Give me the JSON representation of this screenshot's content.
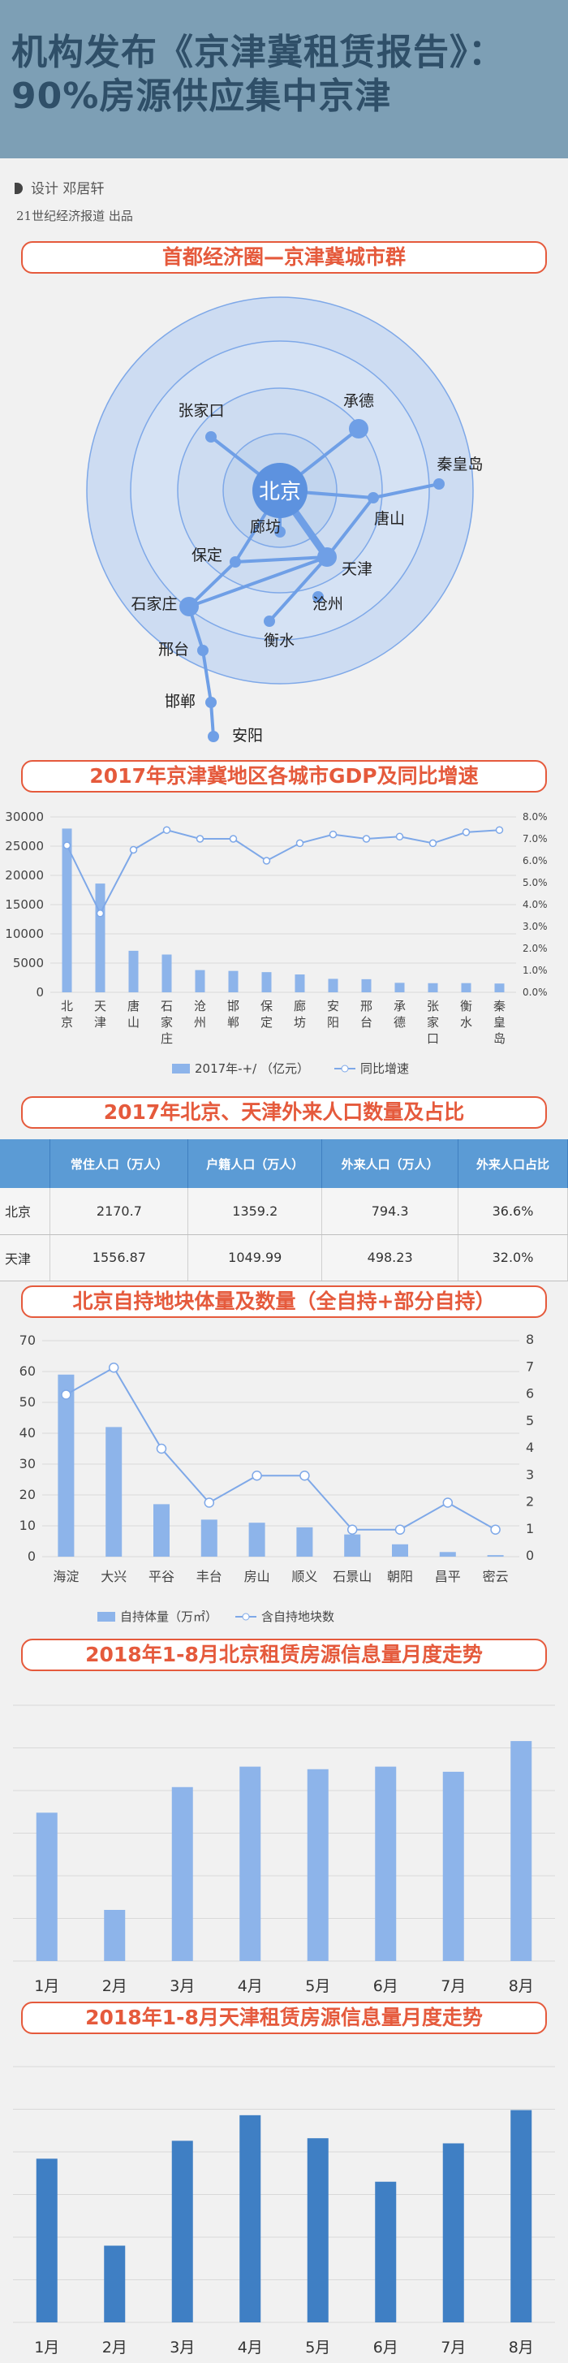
{
  "header": {
    "title_line1": "机构发布《京津冀租赁报告》：",
    "title_line2": "90%房源供应集中京津"
  },
  "credit": {
    "designer": "设计  邓居轩",
    "publisher": "21世纪经济报道  出品"
  },
  "colors": {
    "accent": "#e55a3c",
    "bar_light": "#8db4ea",
    "bar_dark": "#3f7fc4",
    "line": "#7ea8e8",
    "header_bg": "#7d9fb5",
    "title_text": "#2f4f68"
  },
  "sections": {
    "s1": "首都经济圈—京津冀城市群",
    "s2": "2017年京津冀地区各城市GDP及同比增速",
    "s3": "2017年北京、天津外来人口数量及占比",
    "s4": "北京自持地块体量及数量（全自持+部分自持）",
    "s5": "2018年1-8月北京租赁房源信息量月度走势",
    "s6": "2018年1-8月天津租赁房源信息量月度走势"
  },
  "city_map": {
    "center": "北京",
    "cities": [
      "张家口",
      "承德",
      "秦皇岛",
      "唐山",
      "廊坊",
      "保定",
      "天津",
      "沧州",
      "衡水",
      "石家庄",
      "邢台",
      "邯郸",
      "安阳"
    ]
  },
  "chart_data": [
    {
      "type": "bar",
      "title": "2017年京津冀地区各城市GDP及同比增速",
      "categories": [
        "北京",
        "天津",
        "唐山",
        "石家庄",
        "沧州",
        "邯郸",
        "保定",
        "廊坊",
        "安阳",
        "邢台",
        "承德",
        "张家口",
        "衡水",
        "秦皇岛"
      ],
      "series": [
        {
          "name": "2017年-+/ （亿元）",
          "type": "bar",
          "axis": "left",
          "values": [
            28000,
            18600,
            7100,
            6460,
            3800,
            3660,
            3450,
            3050,
            2300,
            2240,
            1620,
            1560,
            1570,
            1500
          ]
        },
        {
          "name": "同比增速",
          "type": "line",
          "axis": "right",
          "values": [
            6.7,
            3.6,
            6.5,
            7.4,
            7.0,
            7.0,
            6.0,
            6.8,
            7.2,
            7.0,
            7.1,
            6.8,
            7.3,
            7.4
          ]
        }
      ],
      "ylim": [
        0,
        30000
      ],
      "y_ticks": [
        "30000",
        "25000",
        "20000",
        "15000",
        "10000",
        "5000",
        "0"
      ],
      "y2lim": [
        0,
        8
      ],
      "y2_ticks": [
        "8.0%",
        "7.0%",
        "6.0%",
        "5.0%",
        "4.0%",
        "3.0%",
        "2.0%",
        "1.0%",
        "0.0%"
      ],
      "legend": "bottom"
    },
    {
      "type": "table",
      "title": "2017年北京、天津外来人口数量及占比",
      "columns": [
        "",
        "常住人口（万人）",
        "户籍人口（万人）",
        "外来人口（万人）",
        "外来人口占比"
      ],
      "rows": [
        [
          "北京",
          "2170.7",
          "1359.2",
          "794.3",
          "36.6%"
        ],
        [
          "天津",
          "1556.87",
          "1049.99",
          "498.23",
          "32.0%"
        ]
      ]
    },
    {
      "type": "bar",
      "title": "北京自持地块体量及数量（全自持+部分自持）",
      "categories": [
        "海淀",
        "大兴",
        "平谷",
        "丰台",
        "房山",
        "顺义",
        "石景山",
        "朝阳",
        "昌平",
        "密云"
      ],
      "series": [
        {
          "name": "自持体量（万㎡）",
          "type": "bar",
          "axis": "left",
          "values": [
            59,
            42,
            17,
            12,
            11,
            9.5,
            7.2,
            4,
            1.5,
            0.5
          ]
        },
        {
          "name": "含自持地块数",
          "type": "line",
          "axis": "right",
          "values": [
            6,
            7,
            4,
            2,
            3,
            3,
            1,
            1,
            2,
            1
          ]
        }
      ],
      "ylim": [
        0,
        70
      ],
      "y_ticks": [
        "70",
        "60",
        "50",
        "40",
        "30",
        "20",
        "10",
        "0"
      ],
      "y2lim": [
        0,
        8
      ],
      "y2_ticks": [
        "8",
        "7",
        "6",
        "5",
        "4",
        "3",
        "2",
        "1",
        "0"
      ],
      "legend": "bottom"
    },
    {
      "type": "bar",
      "title": "2018年1-8月北京租赁房源信息量月度走势",
      "categories": [
        "1月",
        "2月",
        "3月",
        "4月",
        "5月",
        "6月",
        "7月",
        "8月"
      ],
      "values": [
        58,
        20,
        68,
        76,
        75,
        76,
        74,
        86
      ],
      "ylim": [
        0,
        100
      ]
    },
    {
      "type": "bar",
      "title": "2018年1-8月天津租赁房源信息量月度走势",
      "categories": [
        "1月",
        "2月",
        "3月",
        "4月",
        "5月",
        "6月",
        "7月",
        "8月"
      ],
      "values": [
        64,
        30,
        71,
        81,
        72,
        55,
        70,
        83
      ],
      "ylim": [
        0,
        100
      ]
    }
  ]
}
